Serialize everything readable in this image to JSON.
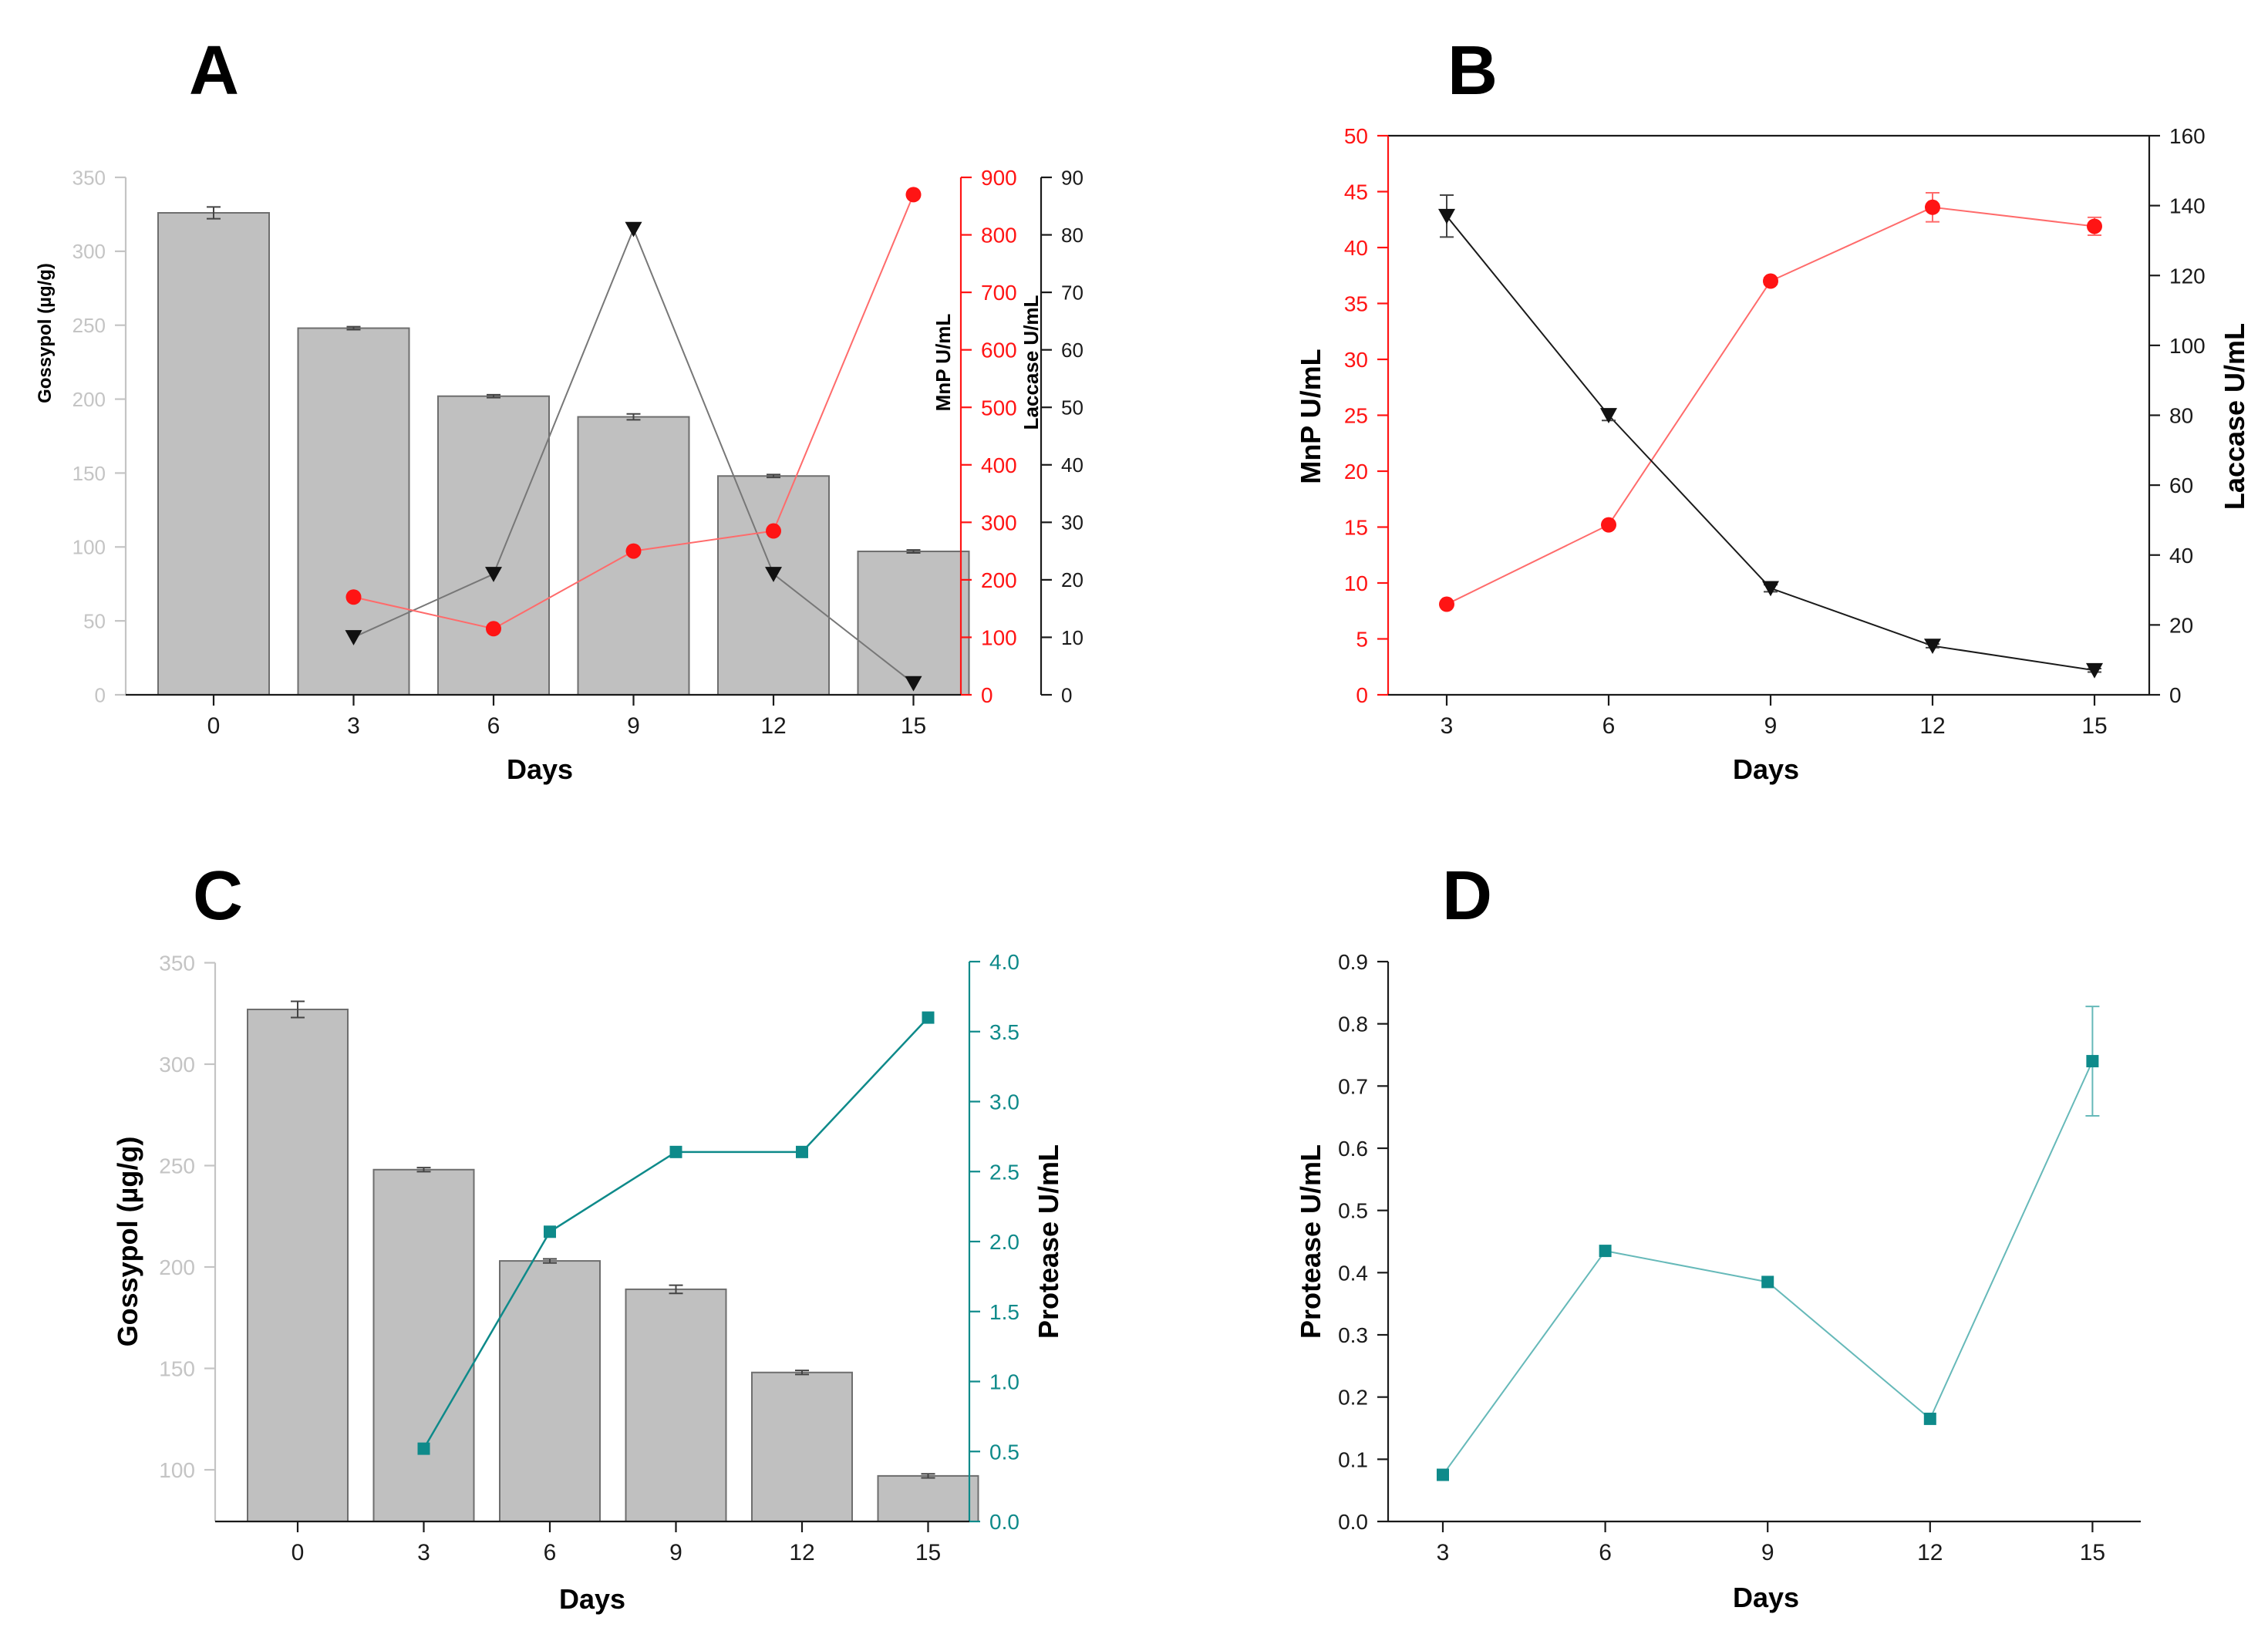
{
  "colors": {
    "bar_fill": "#c0c0c0",
    "bar_stroke": "#6e6e6e",
    "axis_black": "#1a1a1a",
    "axis_grey": "#c4c4c4",
    "red": "#ff1414",
    "red_line": "#ff6b6b",
    "mnp_marker": "#111111",
    "mnp_line": "#777777",
    "teal": "#0e8a8a",
    "teal_light": "#66b9b9"
  },
  "chart_data": [
    {
      "panel": "A",
      "type": "bar",
      "xlabel": "Days",
      "categories": [
        "0",
        "3",
        "6",
        "9",
        "12",
        "15"
      ],
      "y_left": {
        "label": "Gossypol (µg/g)",
        "range": [
          0,
          350
        ],
        "ticks": [
          0,
          50,
          100,
          150,
          200,
          250,
          300,
          350
        ]
      },
      "bars": {
        "name": "Gossypol (µg/g)",
        "values": [
          326,
          248,
          202,
          188,
          148,
          97
        ],
        "errors": [
          4,
          1,
          1,
          2,
          1,
          1
        ]
      },
      "y_right_inner": {
        "label": "MnP U/mL",
        "range": [
          0,
          900
        ],
        "ticks": [
          0,
          100,
          200,
          300,
          400,
          500,
          600,
          700,
          800,
          900
        ]
      },
      "y_right_outer": {
        "label": "Laccase U/mL",
        "range": [
          0,
          90
        ],
        "ticks": [
          0,
          10,
          20,
          30,
          40,
          50,
          60,
          70,
          80,
          90
        ]
      },
      "series": [
        {
          "name": "MnP U/mL",
          "axis": "y_right_inner",
          "x": [
            "3",
            "6",
            "9",
            "12",
            "15"
          ],
          "values": [
            170,
            115,
            250,
            285,
            870
          ]
        },
        {
          "name": "Laccase U/mL",
          "axis": "y_right_outer",
          "x": [
            "3",
            "6",
            "9",
            "12",
            "15"
          ],
          "values": [
            10,
            21,
            81,
            21,
            2
          ]
        }
      ]
    },
    {
      "panel": "B",
      "type": "line",
      "xlabel": "Days",
      "x": [
        3,
        6,
        9,
        12,
        15
      ],
      "x_ticks": [
        3,
        6,
        9,
        12,
        15
      ],
      "y_left": {
        "label": "MnP U/mL",
        "range": [
          0,
          50
        ],
        "ticks": [
          0,
          5,
          10,
          15,
          20,
          25,
          30,
          35,
          40,
          45,
          50
        ]
      },
      "y_right": {
        "label": "Laccase U/mL",
        "range": [
          0,
          160
        ],
        "ticks": [
          0,
          20,
          40,
          60,
          80,
          100,
          120,
          140,
          160
        ]
      },
      "series": [
        {
          "name": "MnP U/mL",
          "axis": "y_left",
          "values": [
            8.1,
            15.2,
            37.0,
            43.6,
            41.9
          ],
          "errors": [
            0.2,
            0.2,
            0.3,
            1.3,
            0.8
          ]
        },
        {
          "name": "Laccase U/mL",
          "axis": "y_right",
          "values": [
            137,
            80,
            30.5,
            14,
            7
          ],
          "errors": [
            6,
            1.5,
            1,
            0.5,
            0.5
          ]
        }
      ]
    },
    {
      "panel": "C",
      "type": "bar",
      "xlabel": "Days",
      "categories": [
        "0",
        "3",
        "6",
        "9",
        "12",
        "15"
      ],
      "y_left": {
        "label": "Gossypol (µg/g)",
        "range": [
          75,
          350
        ],
        "ticks": [
          100,
          150,
          200,
          250,
          300,
          350
        ]
      },
      "bars": {
        "name": "Gossypol (µg/g)",
        "values": [
          327,
          248,
          203,
          189,
          148,
          97
        ],
        "errors": [
          4,
          1,
          1,
          2,
          1,
          1
        ]
      },
      "y_right": {
        "label": "Protease U/mL",
        "range": [
          0,
          4
        ],
        "ticks": [
          "0.0",
          "0.5",
          "1.0",
          "1.5",
          "2.0",
          "2.5",
          "3.0",
          "3.5",
          "4.0"
        ]
      },
      "series": [
        {
          "name": "Protease U/mL",
          "axis": "y_right",
          "x": [
            "3",
            "6",
            "9",
            "12",
            "15"
          ],
          "values": [
            0.52,
            2.07,
            2.64,
            2.64,
            3.6
          ]
        }
      ]
    },
    {
      "panel": "D",
      "type": "line",
      "xlabel": "Days",
      "x": [
        3,
        6,
        9,
        12,
        15
      ],
      "x_ticks": [
        3,
        6,
        9,
        12,
        15
      ],
      "y_left": {
        "label": "Protease U/mL",
        "range": [
          0,
          0.9
        ],
        "ticks": [
          "0.0",
          "0.1",
          "0.2",
          "0.3",
          "0.4",
          "0.5",
          "0.6",
          "0.7",
          "0.8",
          "0.9"
        ]
      },
      "series": [
        {
          "name": "Protease U/mL",
          "axis": "y_left",
          "values": [
            0.075,
            0.435,
            0.385,
            0.165,
            0.74
          ],
          "errors": [
            0.005,
            0.005,
            0.005,
            0.005,
            0.088
          ]
        }
      ]
    }
  ]
}
